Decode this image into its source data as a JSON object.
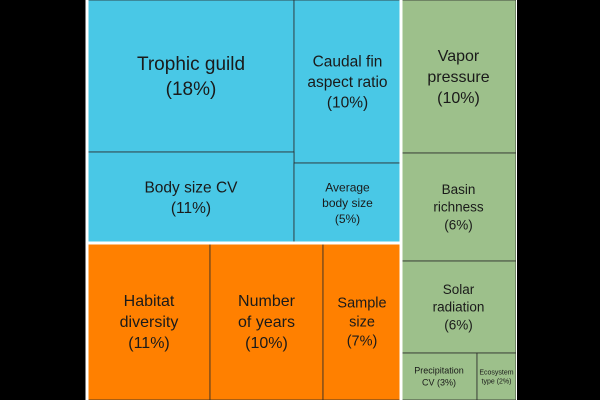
{
  "chart_data": {
    "type": "treemap",
    "groups": [
      {
        "name": "group-blue",
        "color": "#49C8E6",
        "items": [
          {
            "label": "Trophic guild",
            "value": 18,
            "value_text": "(18%)"
          },
          {
            "label": "Caudal fin aspect ratio",
            "value": 10,
            "value_text": "(10%)"
          },
          {
            "label": "Body size CV",
            "value": 11,
            "value_text": "(11%)"
          },
          {
            "label": "Average body size",
            "value": 5,
            "value_text": "(5%)"
          }
        ]
      },
      {
        "name": "group-orange",
        "color": "#FF8000",
        "items": [
          {
            "label": "Habitat diversity",
            "value": 11,
            "value_text": "(11%)"
          },
          {
            "label": "Number of years",
            "value": 10,
            "value_text": "(10%)"
          },
          {
            "label": "Sample size",
            "value": 7,
            "value_text": "(7%)"
          }
        ]
      },
      {
        "name": "group-green",
        "color": "#9DC08B",
        "items": [
          {
            "label": "Vapor pressure",
            "value": 10,
            "value_text": "(10%)"
          },
          {
            "label": "Basin richness",
            "value": 6,
            "value_text": "(6%)"
          },
          {
            "label": "Solar radiation",
            "value": 6,
            "value_text": "(6%)"
          },
          {
            "label": "Precipitation CV",
            "value": 3,
            "value_text": "(3%)"
          },
          {
            "label": "Ecosystem type",
            "value": 2,
            "value_text": "(2%)"
          }
        ]
      }
    ]
  }
}
